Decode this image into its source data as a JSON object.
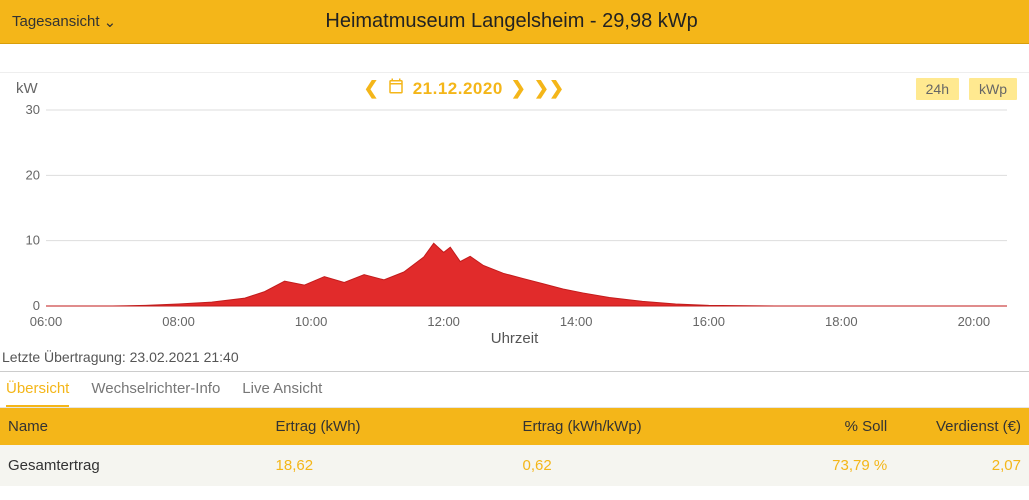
{
  "header": {
    "view_label": "Tagesansicht",
    "title": "Heimatmuseum Langelsheim - 29,98 kWp"
  },
  "chart": {
    "y_axis_label": "kW",
    "date_label": "21.12.2020",
    "chip_24h": "24h",
    "chip_kwp": "kWp",
    "x_axis_label": "Uhrzeit",
    "type": "area",
    "ylim": [
      0,
      30
    ],
    "yticks": [
      0,
      10,
      20,
      30
    ],
    "xlim_hours": [
      6,
      20.5
    ],
    "xticks_hours": [
      6,
      8,
      10,
      12,
      14,
      16,
      18,
      20
    ],
    "xtick_labels": [
      "06:00",
      "08:00",
      "10:00",
      "12:00",
      "14:00",
      "16:00",
      "18:00",
      "20:00"
    ],
    "series_color": "#e02020",
    "grid_color": "#dddddd",
    "background": "#ffffff",
    "data_hours": [
      6.0,
      7.0,
      7.5,
      8.0,
      8.5,
      9.0,
      9.3,
      9.6,
      9.9,
      10.2,
      10.5,
      10.8,
      11.1,
      11.4,
      11.7,
      11.85,
      12.0,
      12.1,
      12.25,
      12.4,
      12.6,
      12.9,
      13.2,
      13.5,
      13.8,
      14.1,
      14.5,
      15.0,
      15.5,
      16.0,
      17.0,
      20.5
    ],
    "data_values": [
      0.0,
      0.0,
      0.1,
      0.3,
      0.6,
      1.2,
      2.2,
      3.8,
      3.2,
      4.5,
      3.6,
      4.8,
      4.0,
      5.2,
      7.5,
      9.6,
      8.2,
      9.0,
      6.8,
      7.6,
      6.2,
      5.0,
      4.2,
      3.4,
      2.6,
      2.0,
      1.3,
      0.7,
      0.3,
      0.1,
      0.0,
      0.0
    ]
  },
  "last_transfer": {
    "prefix": "Letzte Übertragung: ",
    "value": "23.02.2021 21:40"
  },
  "tabs": {
    "overview": "Übersicht",
    "inverter": "Wechselrichter-Info",
    "live": "Live Ansicht"
  },
  "table": {
    "headers": {
      "name": "Name",
      "yield_kwh": "Ertrag (kWh)",
      "yield_kwhkwp": "Ertrag (kWh/kWp)",
      "pct_soll": "% Soll",
      "earnings": "Verdienst (€)"
    },
    "row": {
      "name": "Gesamtertrag",
      "yield_kwh": "18,62",
      "yield_kwhkwp": "0,62",
      "pct_soll": "73,79 %",
      "earnings": "2,07"
    }
  }
}
